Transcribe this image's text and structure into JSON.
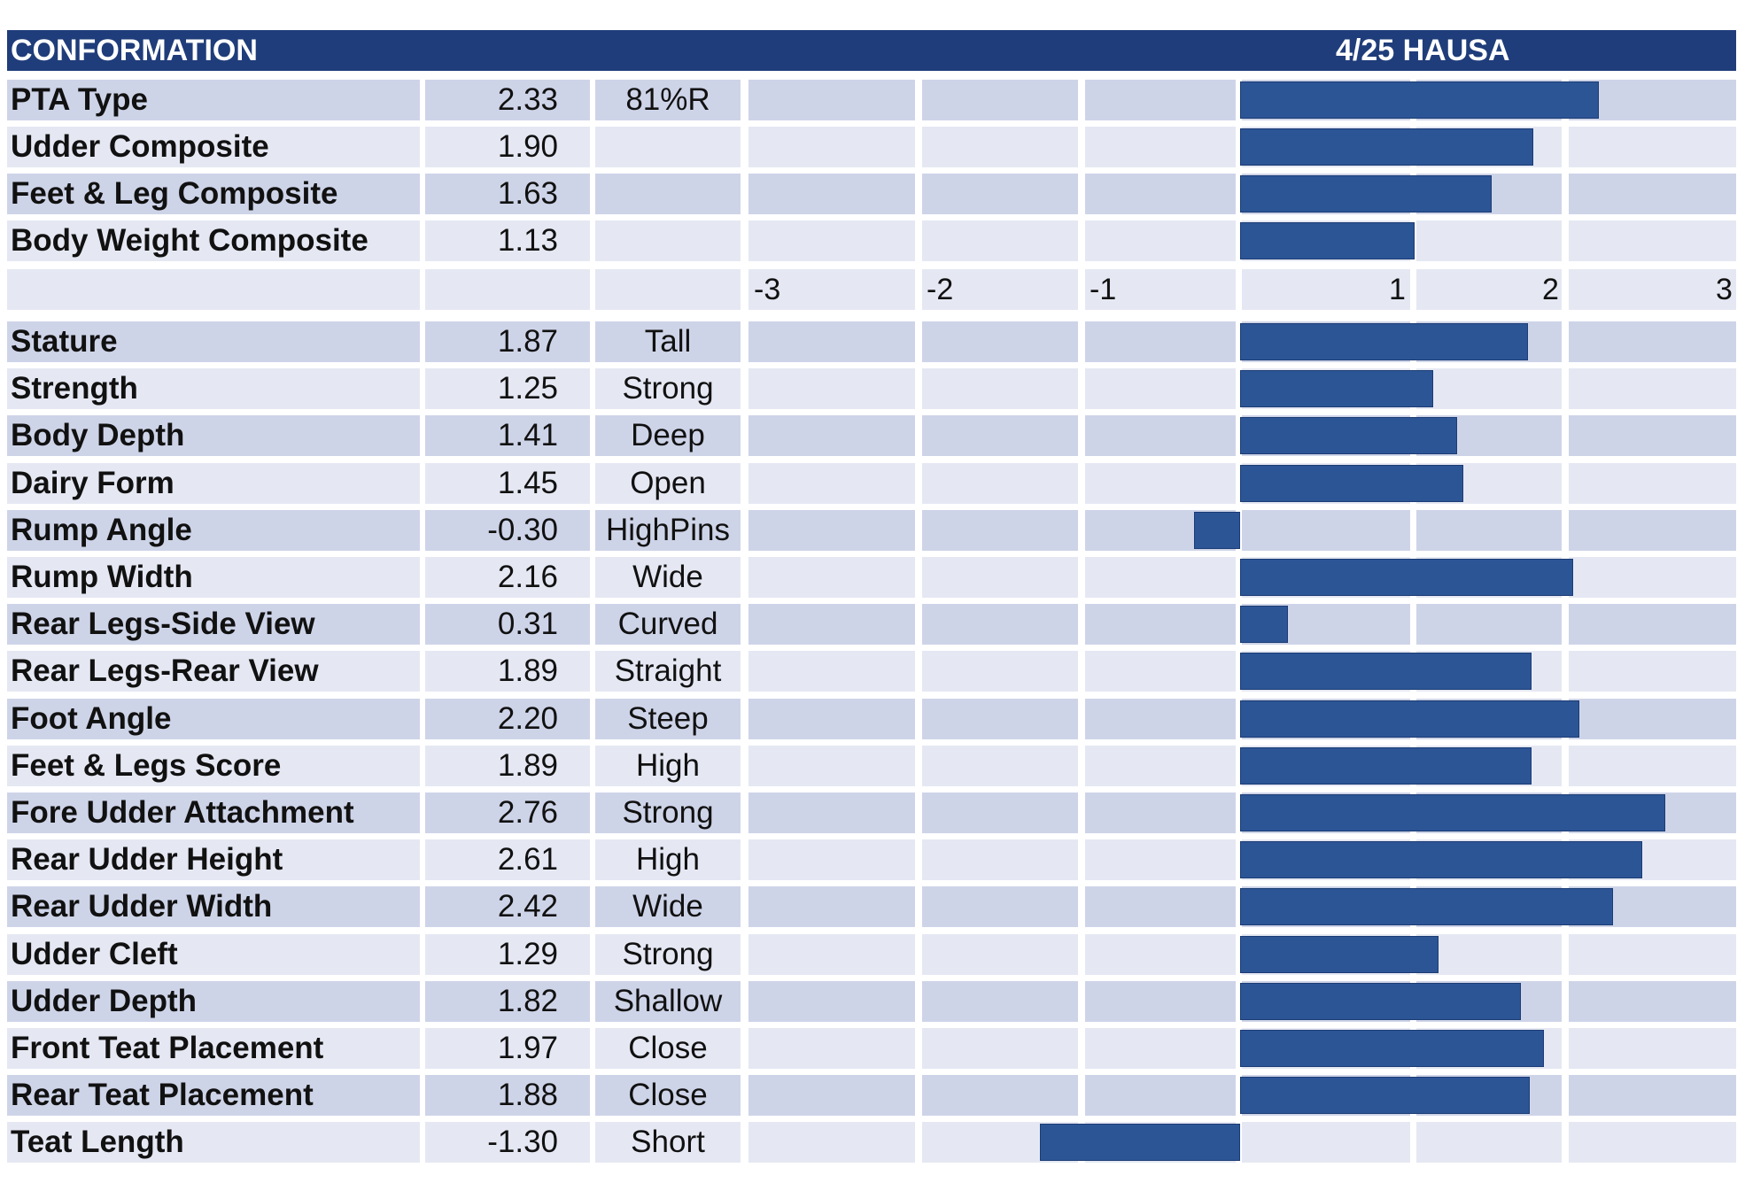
{
  "header": {
    "title": "CONFORMATION",
    "source": "4/25 HAUSA"
  },
  "colors": {
    "header": "#1f3d7a",
    "bar": "#2c5596",
    "row_dark": "#ced4e8",
    "row_light": "#e5e8f3"
  },
  "axis_tick_labels": [
    "-3",
    "-2",
    "-1",
    "1",
    "2",
    "3"
  ],
  "chart_data": {
    "type": "bar",
    "orientation": "horizontal",
    "title": "CONFORMATION",
    "subtitle": "4/25 HAUSA",
    "xlim": [
      -3,
      3
    ],
    "xticks": [
      -3,
      -2,
      -1,
      1,
      2,
      3
    ],
    "composites": [
      {
        "label": "PTA Type",
        "value": 2.33,
        "value_text": "2.33",
        "desc": "81%R"
      },
      {
        "label": "Udder Composite",
        "value": 1.9,
        "value_text": "1.90",
        "desc": ""
      },
      {
        "label": "Feet & Leg Composite",
        "value": 1.63,
        "value_text": "1.63",
        "desc": ""
      },
      {
        "label": "Body Weight Composite",
        "value": 1.13,
        "value_text": "1.13",
        "desc": ""
      }
    ],
    "traits": [
      {
        "label": "Stature",
        "value": 1.87,
        "value_text": "1.87",
        "desc": "Tall"
      },
      {
        "label": "Strength",
        "value": 1.25,
        "value_text": "1.25",
        "desc": "Strong"
      },
      {
        "label": "Body Depth",
        "value": 1.41,
        "value_text": "1.41",
        "desc": "Deep"
      },
      {
        "label": "Dairy Form",
        "value": 1.45,
        "value_text": "1.45",
        "desc": "Open"
      },
      {
        "label": "Rump Angle",
        "value": -0.3,
        "value_text": "-0.30",
        "desc": "HighPins"
      },
      {
        "label": "Rump Width",
        "value": 2.16,
        "value_text": "2.16",
        "desc": "Wide"
      },
      {
        "label": "Rear Legs-Side View",
        "value": 0.31,
        "value_text": "0.31",
        "desc": "Curved"
      },
      {
        "label": "Rear Legs-Rear View",
        "value": 1.89,
        "value_text": "1.89",
        "desc": "Straight"
      },
      {
        "label": "Foot Angle",
        "value": 2.2,
        "value_text": "2.20",
        "desc": "Steep"
      },
      {
        "label": "Feet & Legs Score",
        "value": 1.89,
        "value_text": "1.89",
        "desc": "High"
      },
      {
        "label": "Fore Udder Attachment",
        "value": 2.76,
        "value_text": "2.76",
        "desc": "Strong"
      },
      {
        "label": "Rear Udder Height",
        "value": 2.61,
        "value_text": "2.61",
        "desc": "High"
      },
      {
        "label": "Rear Udder Width",
        "value": 2.42,
        "value_text": "2.42",
        "desc": "Wide"
      },
      {
        "label": "Udder Cleft",
        "value": 1.29,
        "value_text": "1.29",
        "desc": "Strong"
      },
      {
        "label": "Udder Depth",
        "value": 1.82,
        "value_text": "1.82",
        "desc": "Shallow"
      },
      {
        "label": "Front Teat Placement",
        "value": 1.97,
        "value_text": "1.97",
        "desc": "Close"
      },
      {
        "label": "Rear Teat Placement",
        "value": 1.88,
        "value_text": "1.88",
        "desc": "Close"
      },
      {
        "label": "Teat Length",
        "value": -1.3,
        "value_text": "-1.30",
        "desc": "Short"
      }
    ]
  }
}
